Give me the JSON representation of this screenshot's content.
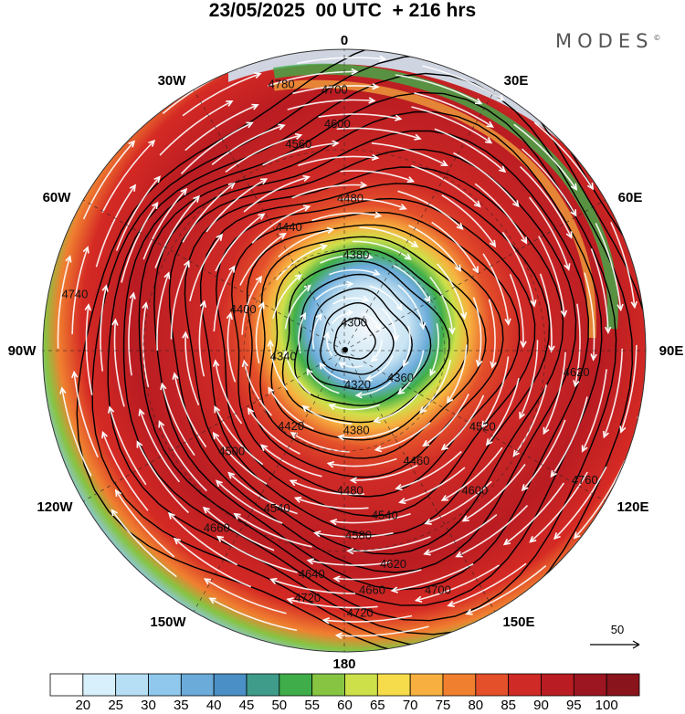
{
  "title": "23/05/2025  00 UTC  + 216 hrs",
  "brand": "MODES",
  "brand_mark": "©",
  "longitudes": {
    "top": "0",
    "top_right": "30E",
    "right_upper": "60E",
    "right": "90E",
    "right_lower": "120E",
    "bottom_right": "150E",
    "bottom": "180",
    "bottom_left": "150W",
    "left_lower": "120W",
    "left": "90W",
    "left_upper": "60W",
    "top_left": "30W"
  },
  "vector_reference": {
    "label": "50",
    "icon": "arrow-right-icon"
  },
  "contour_labels": [
    "4780",
    "4700",
    "4660",
    "4620",
    "4580",
    "4540",
    "4500",
    "4480",
    "4440",
    "4400",
    "4380",
    "4360",
    "4340",
    "4320",
    "4300",
    "4420",
    "4460",
    "4520",
    "4560",
    "4600",
    "4640",
    "4680",
    "4720",
    "4740",
    "4760"
  ],
  "colorbar": {
    "ticks": [
      "20",
      "25",
      "30",
      "35",
      "40",
      "45",
      "50",
      "55",
      "60",
      "65",
      "70",
      "75",
      "80",
      "85",
      "90",
      "95",
      "100"
    ],
    "colors": [
      "#ffffff",
      "#d8f0fb",
      "#b6def4",
      "#8fc8ec",
      "#6aabd9",
      "#4a8fc6",
      "#3f9c8a",
      "#3fae4a",
      "#86c442",
      "#cde04a",
      "#f6dc4a",
      "#f7b03f",
      "#f08030",
      "#e4502a",
      "#cf2a26",
      "#b91c22",
      "#9b1620",
      "#8a141c"
    ]
  }
}
